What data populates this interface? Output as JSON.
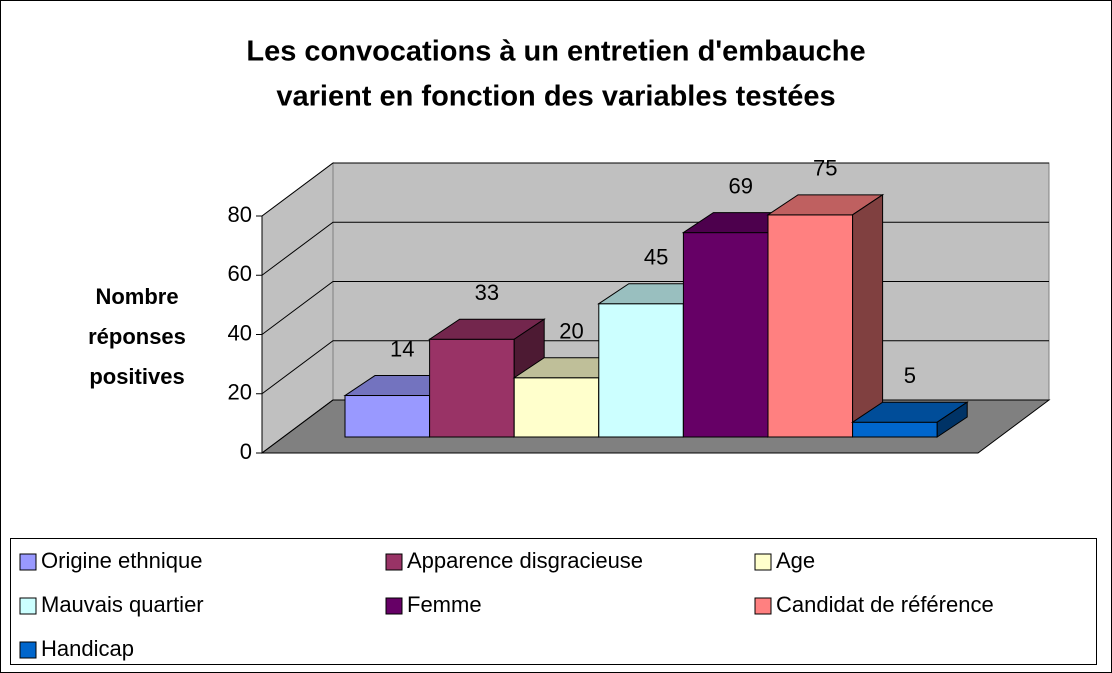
{
  "chart_data": {
    "type": "bar3d",
    "title": [
      "Les convocations à un entretien d'embauche",
      "varient en fonction des variables testées"
    ],
    "y_label": [
      "Nombre",
      "réponses",
      "positives"
    ],
    "ylim": [
      0,
      80
    ],
    "yticks": [
      0,
      20,
      40,
      60,
      80
    ],
    "grid": true,
    "series": [
      {
        "name": "Origine ethnique",
        "color": "#9999ff",
        "values": [
          14
        ]
      },
      {
        "name": "Apparence disgracieuse",
        "color": "#993366",
        "values": [
          33
        ]
      },
      {
        "name": "Age",
        "color": "#ffffcc",
        "values": [
          20
        ]
      },
      {
        "name": "Mauvais quartier",
        "color": "#ccffff",
        "values": [
          45
        ]
      },
      {
        "name": "Femme",
        "color": "#660066",
        "values": [
          69
        ]
      },
      {
        "name": "Candidat de référence",
        "color": "#ff8080",
        "values": [
          75
        ]
      },
      {
        "name": "Handicap",
        "color": "#0066cc",
        "values": [
          5
        ]
      }
    ]
  }
}
